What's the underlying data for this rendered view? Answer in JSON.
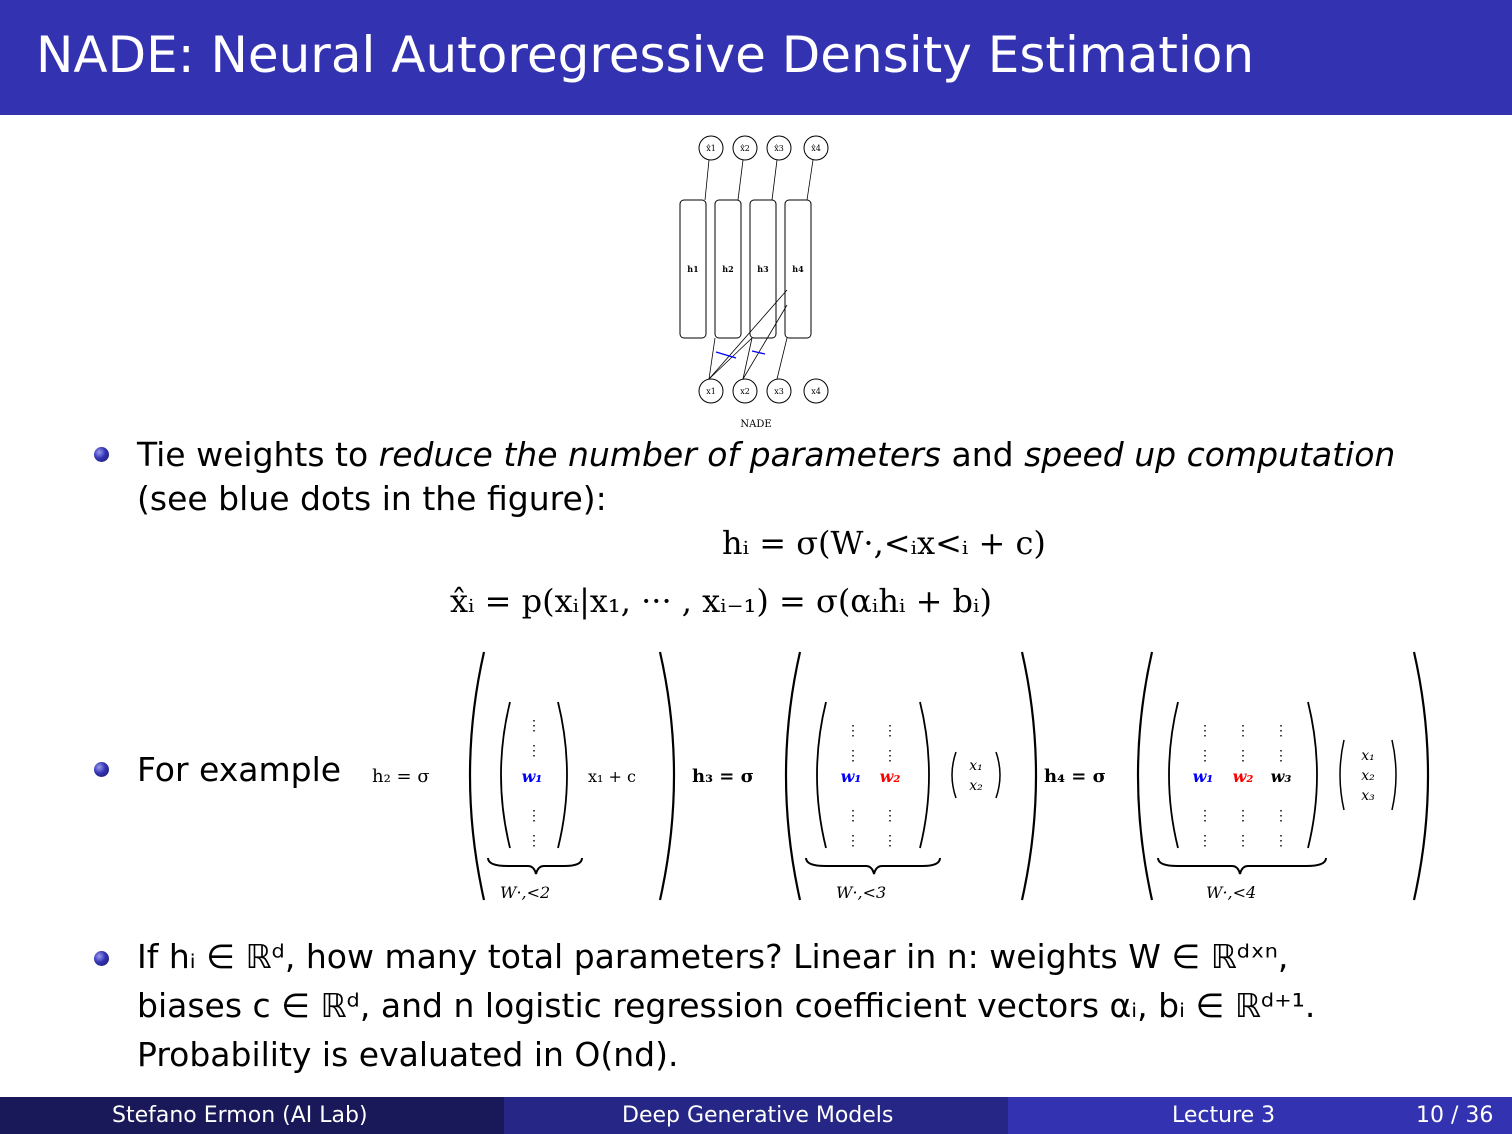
{
  "title": "NADE: Neural Autoregressive Density Estimation",
  "figure": {
    "outputs": [
      "x̂1",
      "x̂2",
      "x̂3",
      "x̂4"
    ],
    "hidden": [
      "h1",
      "h2",
      "h3",
      "h4"
    ],
    "inputs": [
      "x1",
      "x2",
      "x3",
      "x4"
    ],
    "caption": "NADE"
  },
  "bullet1": {
    "t1": "Tie weights to ",
    "e1": "reduce the number of parameters",
    "t2": " and ",
    "e2": "speed up computation",
    "line2": "(see blue dots in the figure):"
  },
  "eq1": "hᵢ = σ(W·,<ᵢx<ᵢ + c)",
  "eq2": "x̂ᵢ = p(xᵢ|x₁, ··· , xᵢ₋₁) = σ(αᵢhᵢ + bᵢ)",
  "bullet2": {
    "label": "For example",
    "h2": "h₂ = σ",
    "h3": "h₃ = σ",
    "h4": "h₄ = σ",
    "w1": "w₁",
    "w2": "w₂",
    "w3": "w₃",
    "x1c": "x₁ + c",
    "x1": "x₁",
    "x2": "x₂",
    "x3": "x₃",
    "W2": "W·,<2",
    "W3": "W·,<3",
    "W4": "W·,<4"
  },
  "bullet3": {
    "line1": "If hᵢ ∈ ℝᵈ, how many total parameters? Linear in n: weights W ∈ ℝᵈˣⁿ,",
    "line2": "biases c ∈ ℝᵈ, and n logistic regression coefficient vectors αᵢ, bᵢ ∈ ℝᵈ⁺¹.",
    "line3": "Probability is evaluated in O(nd)."
  },
  "footer": {
    "author": "Stefano Ermon  (AI Lab)",
    "course": "Deep Generative Models",
    "lecture": "Lecture 3",
    "page": "10 / 36"
  },
  "colors": {
    "titlebar": "#3333b2",
    "blue": "#0000ff",
    "red": "#ff0000"
  }
}
